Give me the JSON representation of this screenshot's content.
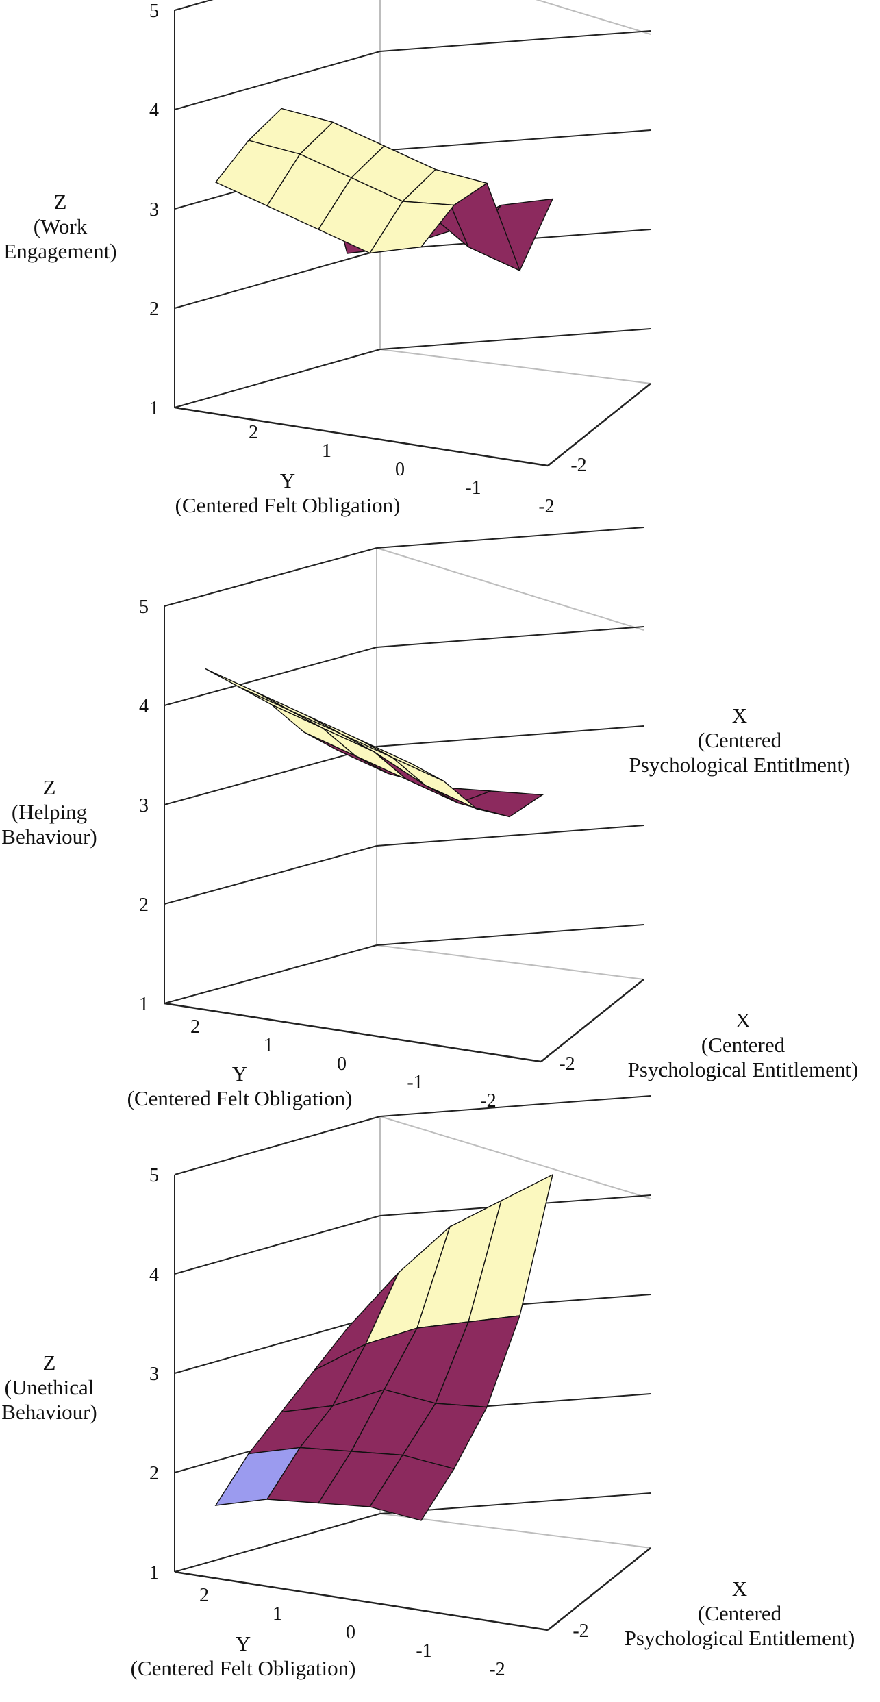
{
  "colors": {
    "upper_band": "#fbf8bf",
    "middle_band": "#8c2a5e",
    "lower_band": "#9b9bef",
    "mesh": "#111111",
    "grid": "#222222",
    "frame": "#bdbdbd"
  },
  "chart_data": [
    {
      "type": "surface",
      "zlabel": [
        "Z",
        "(Work",
        "Engagement)"
      ],
      "xlabel": [
        "X",
        "(Centered",
        "Psychological Entitlment)"
      ],
      "ylabel": [
        "Y",
        "(Centered Felt Obligation)"
      ],
      "z_ticks": [
        "1",
        "2",
        "3",
        "4",
        "5"
      ],
      "y_ticks": [
        "2",
        "1",
        "0",
        "-1",
        "-2"
      ],
      "x_ticks": [
        "-2"
      ],
      "zlim": [
        1,
        5
      ],
      "grid": true,
      "x_values": [
        -2,
        -1,
        0,
        1,
        2
      ],
      "y_values": [
        2,
        1,
        0,
        -1,
        -2
      ],
      "z_values": [
        [
          3.2,
          3.1,
          3.0,
          2.9,
          3.1
        ],
        [
          3.4,
          3.4,
          3.3,
          3.2,
          3.3
        ],
        [
          3.5,
          3.5,
          3.4,
          3.3,
          3.3
        ],
        [
          3.1,
          2.8,
          2.6,
          2.3,
          2.2
        ],
        [
          1.6,
          1.8,
          2.1,
          2.5,
          2.7
        ]
      ]
    },
    {
      "type": "surface",
      "zlabel": [
        "Z",
        "(Helping",
        "Behaviour)"
      ],
      "xlabel": [
        "X",
        "(Centered",
        "Psychological Entitlement)"
      ],
      "ylabel": [
        "Y",
        "(Centered Felt Obligation)"
      ],
      "z_ticks": [
        "1",
        "2",
        "3",
        "4",
        "5"
      ],
      "y_ticks": [
        "2",
        "1",
        "0",
        "-1",
        "-2"
      ],
      "x_ticks": [
        "-2"
      ],
      "zlim": [
        1,
        5
      ],
      "grid": true,
      "x_values": [
        -2,
        -1,
        0,
        1,
        2
      ],
      "y_values": [
        2,
        1,
        0,
        -1,
        -2
      ],
      "z_values": [
        [
          4.3,
          4.2,
          4.1,
          4.0,
          3.9
        ],
        [
          3.9,
          3.8,
          3.7,
          3.6,
          3.5
        ],
        [
          3.5,
          3.4,
          3.3,
          3.1,
          3.0
        ],
        [
          3.0,
          2.9,
          2.8,
          2.7,
          2.7
        ],
        [
          2.6,
          2.5,
          2.5,
          2.6,
          2.7
        ]
      ]
    },
    {
      "type": "surface",
      "zlabel": [
        "Z",
        "(Unethical",
        "Behaviour)"
      ],
      "xlabel": [
        "X",
        "(Centered",
        "Psychological Entitlement)"
      ],
      "ylabel": [
        "Y",
        "(Centered Felt Obligation)"
      ],
      "z_ticks": [
        "1",
        "2",
        "3",
        "4",
        "5"
      ],
      "y_ticks": [
        "2",
        "1",
        "0",
        "-1",
        "-2"
      ],
      "x_ticks": [
        "-2"
      ],
      "zlim": [
        1,
        5
      ],
      "grid": true,
      "x_values": [
        -2,
        -1,
        0,
        1,
        2
      ],
      "y_values": [
        2,
        1,
        0,
        -1,
        -2
      ],
      "z_values": [
        [
          1.6,
          1.8,
          1.9,
          2.0,
          2.0
        ],
        [
          1.9,
          2.1,
          2.2,
          2.3,
          2.3
        ],
        [
          2.1,
          2.3,
          2.6,
          2.6,
          2.7
        ],
        [
          2.3,
          2.7,
          3.0,
          3.2,
          3.4
        ],
        [
          2.5,
          3.2,
          3.8,
          4.2,
          4.6
        ]
      ]
    }
  ]
}
